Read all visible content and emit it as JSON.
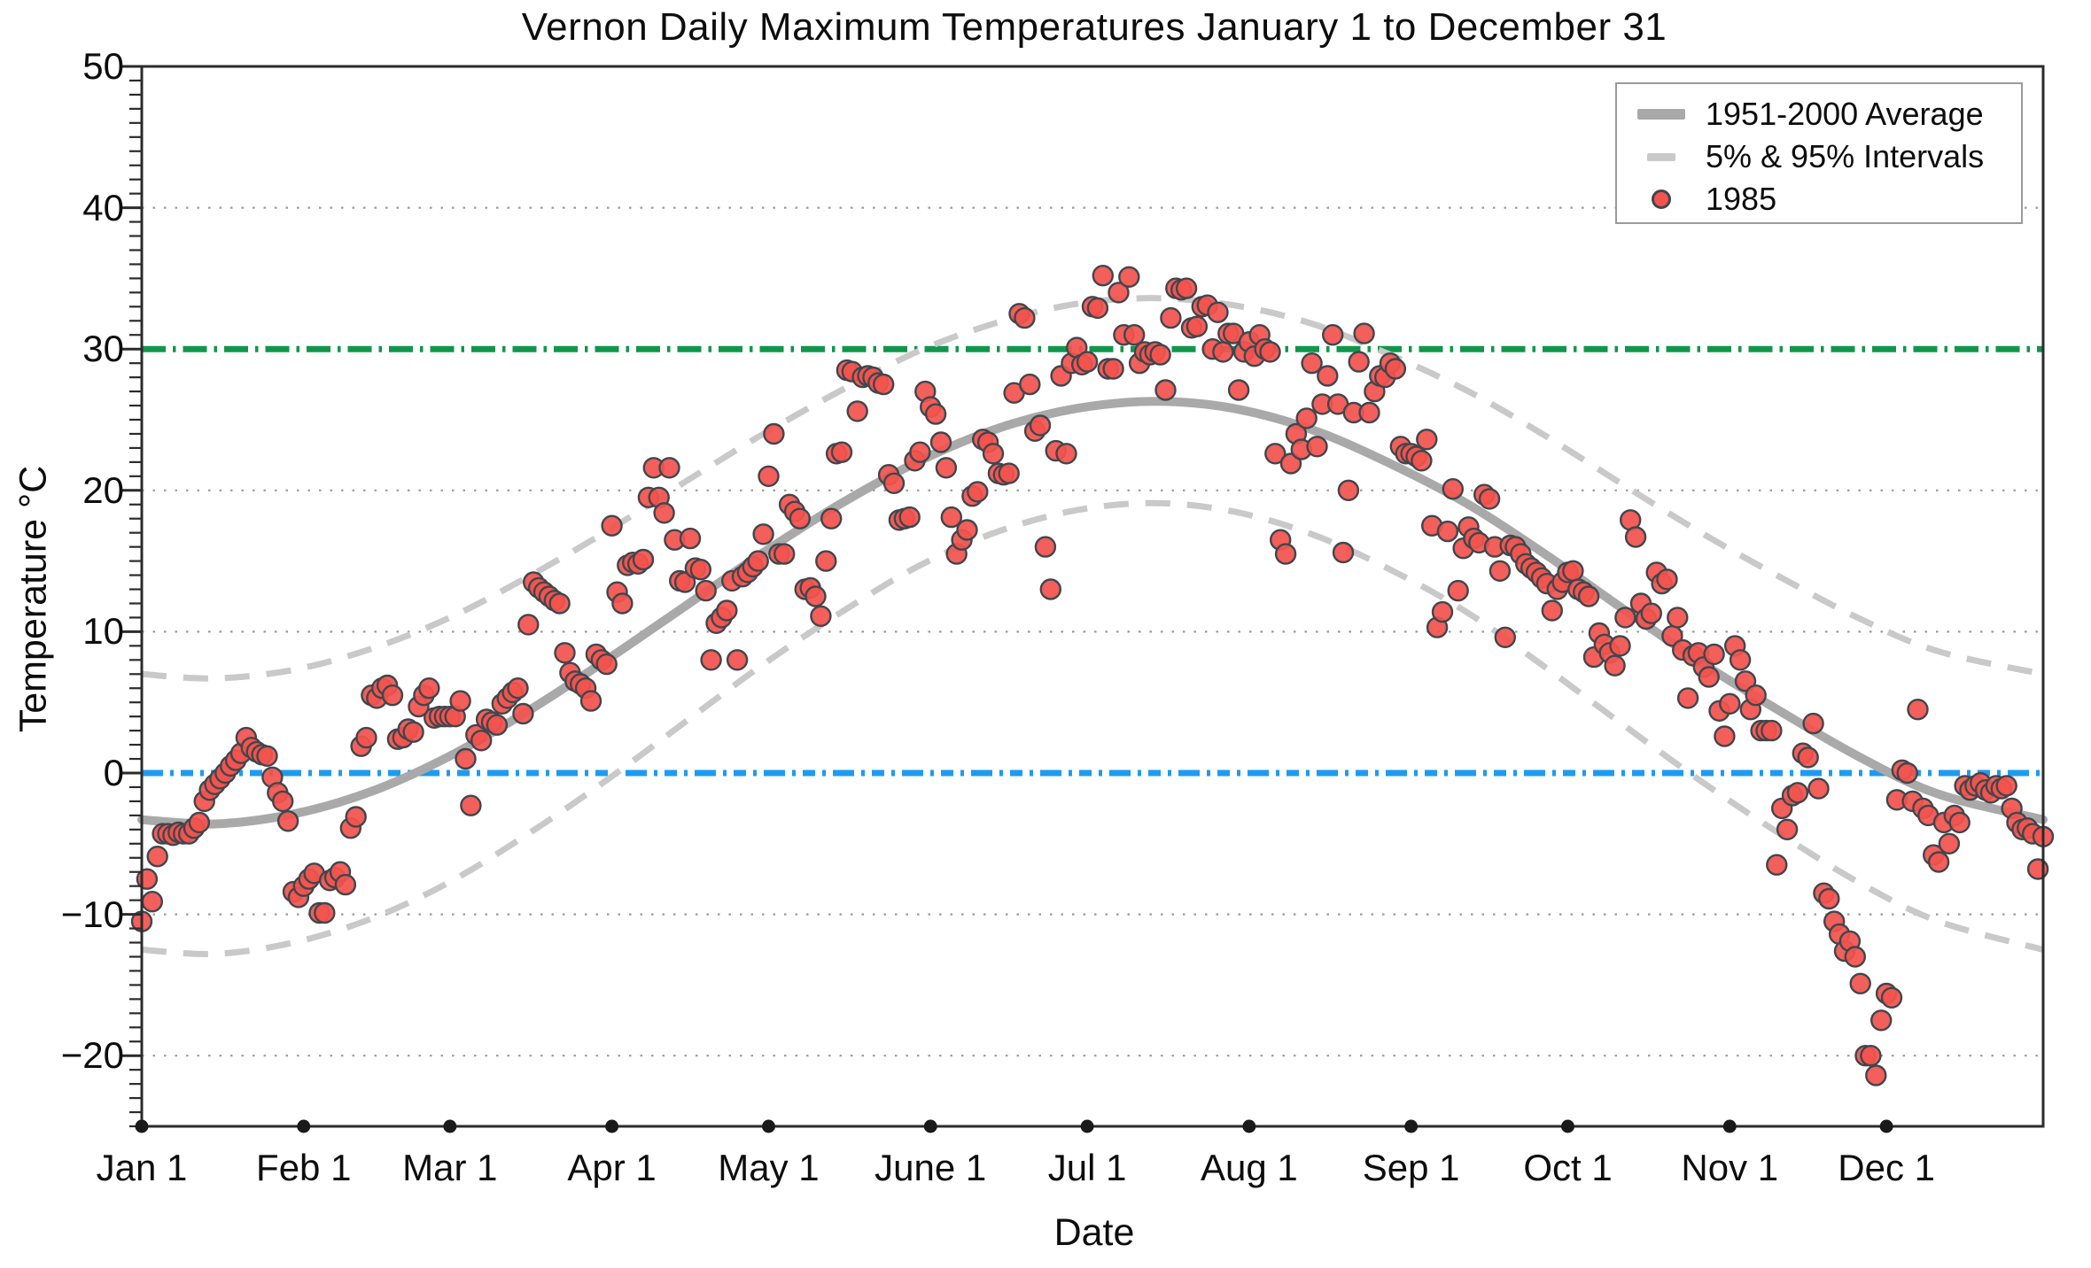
{
  "title": "Vernon Daily Maximum Temperatures January 1 to December 31",
  "axes": {
    "x_label": "Date",
    "y_label": "Temperature °C",
    "y_min": -25,
    "y_max": 50,
    "y_major_ticks": [
      50,
      40,
      30,
      20,
      10,
      0,
      -10,
      -20
    ],
    "y_tick_labels": [
      "50",
      "40",
      "30",
      "20",
      "10",
      "0",
      "−10",
      "−20"
    ],
    "y_gridlines": [
      40,
      20,
      10,
      -10,
      -20
    ],
    "months": [
      {
        "label": "Jan 1",
        "day": 1
      },
      {
        "label": "Feb 1",
        "day": 32
      },
      {
        "label": "Mar 1",
        "day": 60
      },
      {
        "label": "Apr 1",
        "day": 91
      },
      {
        "label": "May 1",
        "day": 121
      },
      {
        "label": "June 1",
        "day": 152
      },
      {
        "label": "Jul 1",
        "day": 182
      },
      {
        "label": "Aug 1",
        "day": 213
      },
      {
        "label": "Sep 1",
        "day": 244
      },
      {
        "label": "Oct 1",
        "day": 274
      },
      {
        "label": "Nov 1",
        "day": 305
      },
      {
        "label": "Dec 1",
        "day": 335
      }
    ]
  },
  "legend": {
    "items": [
      {
        "swatch": "thick-line",
        "label": "1951-2000 Average"
      },
      {
        "swatch": "dash",
        "label": "5% & 95% Intervals"
      },
      {
        "swatch": "dot",
        "label": "1985"
      }
    ]
  },
  "reference_lines": [
    {
      "name": "threshold-30C",
      "value": 30,
      "color": "#11964b",
      "style": "dash-dot"
    },
    {
      "name": "freezing-0C",
      "value": 0,
      "color": "#1e9bf0",
      "style": "dash-dot"
    }
  ],
  "colors": {
    "scatter_fill": "#f2534e",
    "scatter_edge": "#41464d",
    "average_line": "#a9a9a9",
    "interval_line": "#c9c9c9",
    "gridline": "#9a9a9a",
    "frame": "#2b2b2b",
    "month_dot": "#1a1a1a",
    "green_line": "#11964b",
    "blue_line": "#1e9bf0"
  },
  "chart_data": {
    "type": "scatter",
    "title": "Vernon Daily Maximum Temperatures January 1 to December 31",
    "xlabel": "Date",
    "ylabel": "Temperature °C",
    "x_unit": "day-of-year (1 = Jan 1)",
    "xlim": [
      1,
      365
    ],
    "ylim": [
      -25,
      50
    ],
    "grid": "horizontal-dotted",
    "legend_position": "top-right",
    "series": [
      {
        "name": "1985",
        "style": "scatter-dots",
        "start_day": 1,
        "values": [
          -10.5,
          -7.5,
          -9.1,
          -5.9,
          -4.3,
          -4.3,
          -4.4,
          -4.2,
          -4.3,
          -4.3,
          -3.9,
          -3.5,
          -2.0,
          -1.2,
          -0.8,
          -0.4,
          0.0,
          0.5,
          0.9,
          1.4,
          2.5,
          1.8,
          1.5,
          1.3,
          1.2,
          -0.3,
          -1.4,
          -2.0,
          -3.4,
          -8.4,
          -8.8,
          -8.0,
          -7.5,
          -7.1,
          -9.9,
          -9.9,
          -7.6,
          -7.4,
          -7.0,
          -7.9,
          -3.9,
          -3.1,
          1.9,
          2.5,
          5.5,
          5.3,
          6.0,
          6.2,
          5.5,
          2.4,
          2.5,
          3.1,
          2.9,
          4.7,
          5.5,
          6.0,
          3.9,
          4.0,
          4.0,
          4.0,
          4.0,
          5.1,
          1.0,
          -2.3,
          2.7,
          2.3,
          3.8,
          3.6,
          3.4,
          4.9,
          5.3,
          5.7,
          6.0,
          4.2,
          10.5,
          13.5,
          13.1,
          12.8,
          12.5,
          12.2,
          12.0,
          8.5,
          7.1,
          6.5,
          6.3,
          6.0,
          5.1,
          8.4,
          8.0,
          7.7,
          17.5,
          12.8,
          12.0,
          14.7,
          14.9,
          14.8,
          15.1,
          19.5,
          21.6,
          19.5,
          18.4,
          21.6,
          16.5,
          13.6,
          13.5,
          16.6,
          14.5,
          14.4,
          12.9,
          8.0,
          10.6,
          11.0,
          11.5,
          13.6,
          8.0,
          13.9,
          14.2,
          14.6,
          15.0,
          16.9,
          21.0,
          24.0,
          15.5,
          15.5,
          19.0,
          18.5,
          18.0,
          13.0,
          13.1,
          12.5,
          11.1,
          15.0,
          18.0,
          22.6,
          22.7,
          28.5,
          28.4,
          25.6,
          28.0,
          28.1,
          28.0,
          27.6,
          27.5,
          21.1,
          20.5,
          17.9,
          18.0,
          18.1,
          22.1,
          22.7,
          27.0,
          25.9,
          25.4,
          23.4,
          21.6,
          18.1,
          15.5,
          16.5,
          17.2,
          19.6,
          19.9,
          23.6,
          23.4,
          22.6,
          21.2,
          21.1,
          21.2,
          26.9,
          32.5,
          32.2,
          27.5,
          24.2,
          24.6,
          16.0,
          13.0,
          22.8,
          28.1,
          22.6,
          29.0,
          30.1,
          28.9,
          29.1,
          33.0,
          32.9,
          35.2,
          28.6,
          28.6,
          34.0,
          31.0,
          35.1,
          31.0,
          29.0,
          29.8,
          29.6,
          29.8,
          29.6,
          27.1,
          32.2,
          34.3,
          34.2,
          34.3,
          31.5,
          31.6,
          33.0,
          33.1,
          30.0,
          32.6,
          29.8,
          31.1,
          31.1,
          27.1,
          29.8,
          30.5,
          29.5,
          31.0,
          30.0,
          29.8,
          22.6,
          16.5,
          15.5,
          21.9,
          24.0,
          22.9,
          25.1,
          29.0,
          23.1,
          26.1,
          28.1,
          31.0,
          26.1,
          15.6,
          20.0,
          25.5,
          29.1,
          31.1,
          25.5,
          27.0,
          28.1,
          28.0,
          29.0,
          28.6,
          23.1,
          22.6,
          22.6,
          22.4,
          22.1,
          23.6,
          17.5,
          10.3,
          11.4,
          17.1,
          20.1,
          12.9,
          15.9,
          17.4,
          16.6,
          16.3,
          19.7,
          19.4,
          16.0,
          14.3,
          9.6,
          16.1,
          16.0,
          15.5,
          14.8,
          14.5,
          14.2,
          13.8,
          13.4,
          11.5,
          13.0,
          13.5,
          14.2,
          14.3,
          13.0,
          12.8,
          12.5,
          8.2,
          9.9,
          9.1,
          8.5,
          7.6,
          9.0,
          11.0,
          17.9,
          16.7,
          12.0,
          10.9,
          11.3,
          14.2,
          13.4,
          13.7,
          9.7,
          11.0,
          8.7,
          5.3,
          8.3,
          8.5,
          7.5,
          6.8,
          8.4,
          4.4,
          2.6,
          4.9,
          9.0,
          8.0,
          6.5,
          4.5,
          5.5,
          3.0,
          3.0,
          3.0,
          -6.5,
          -2.5,
          -4.0,
          -1.6,
          -1.4,
          1.4,
          1.1,
          3.5,
          -1.1,
          -8.5,
          -8.9,
          -10.5,
          -11.4,
          -12.6,
          -11.9,
          -13.0,
          -14.9,
          -20.0,
          -20.0,
          -21.4,
          -17.5,
          -15.6,
          -15.9,
          -1.9,
          0.2,
          0.0,
          -2.0,
          4.5,
          -2.5,
          -3.0,
          -5.8,
          -6.3,
          -3.5,
          -5.0,
          -3.0,
          -3.5,
          -0.9,
          -1.2,
          -0.9,
          -0.7,
          -1.2,
          -1.4,
          -0.9,
          -1.1,
          -0.9,
          -2.5,
          -3.5,
          -4.0,
          -3.9,
          -4.3,
          -6.8,
          -4.5
        ]
      },
      {
        "name": "1951-2000 Average",
        "style": "thick-line",
        "points": [
          [
            1,
            -3.3
          ],
          [
            15,
            -3.6
          ],
          [
            30,
            -2.9
          ],
          [
            45,
            -1.3
          ],
          [
            60,
            1.2
          ],
          [
            75,
            4.4
          ],
          [
            90,
            8.0
          ],
          [
            105,
            11.8
          ],
          [
            120,
            15.6
          ],
          [
            135,
            19.1
          ],
          [
            150,
            22.1
          ],
          [
            165,
            24.4
          ],
          [
            180,
            25.8
          ],
          [
            195,
            26.3
          ],
          [
            210,
            25.8
          ],
          [
            225,
            24.3
          ],
          [
            240,
            21.9
          ],
          [
            255,
            19.0
          ],
          [
            270,
            15.4
          ],
          [
            285,
            11.5
          ],
          [
            300,
            7.7
          ],
          [
            315,
            4.3
          ],
          [
            330,
            1.1
          ],
          [
            345,
            -1.5
          ],
          [
            365,
            -3.3
          ]
        ]
      },
      {
        "name": "95% Interval",
        "style": "dashed-line",
        "points": [
          [
            1,
            7.0
          ],
          [
            15,
            6.7
          ],
          [
            30,
            7.3
          ],
          [
            45,
            8.8
          ],
          [
            60,
            11.0
          ],
          [
            75,
            13.9
          ],
          [
            90,
            17.1
          ],
          [
            105,
            20.6
          ],
          [
            120,
            24.0
          ],
          [
            135,
            27.1
          ],
          [
            150,
            29.9
          ],
          [
            165,
            31.9
          ],
          [
            180,
            33.2
          ],
          [
            195,
            33.6
          ],
          [
            210,
            33.1
          ],
          [
            225,
            31.8
          ],
          [
            240,
            29.6
          ],
          [
            255,
            27.0
          ],
          [
            270,
            23.8
          ],
          [
            285,
            20.3
          ],
          [
            300,
            16.9
          ],
          [
            315,
            13.8
          ],
          [
            330,
            10.9
          ],
          [
            345,
            8.6
          ],
          [
            365,
            7.0
          ]
        ]
      },
      {
        "name": "5% Interval",
        "style": "dashed-line",
        "points": [
          [
            1,
            -12.5
          ],
          [
            15,
            -12.8
          ],
          [
            30,
            -12.0
          ],
          [
            45,
            -10.3
          ],
          [
            60,
            -7.7
          ],
          [
            75,
            -4.3
          ],
          [
            90,
            -0.5
          ],
          [
            105,
            3.6
          ],
          [
            120,
            7.7
          ],
          [
            135,
            11.4
          ],
          [
            150,
            14.7
          ],
          [
            165,
            17.1
          ],
          [
            180,
            18.6
          ],
          [
            195,
            19.1
          ],
          [
            210,
            18.5
          ],
          [
            225,
            16.9
          ],
          [
            240,
            14.4
          ],
          [
            255,
            11.3
          ],
          [
            270,
            7.4
          ],
          [
            285,
            3.3
          ],
          [
            300,
            -0.7
          ],
          [
            315,
            -4.4
          ],
          [
            330,
            -7.8
          ],
          [
            345,
            -10.5
          ],
          [
            365,
            -12.5
          ]
        ]
      }
    ]
  }
}
